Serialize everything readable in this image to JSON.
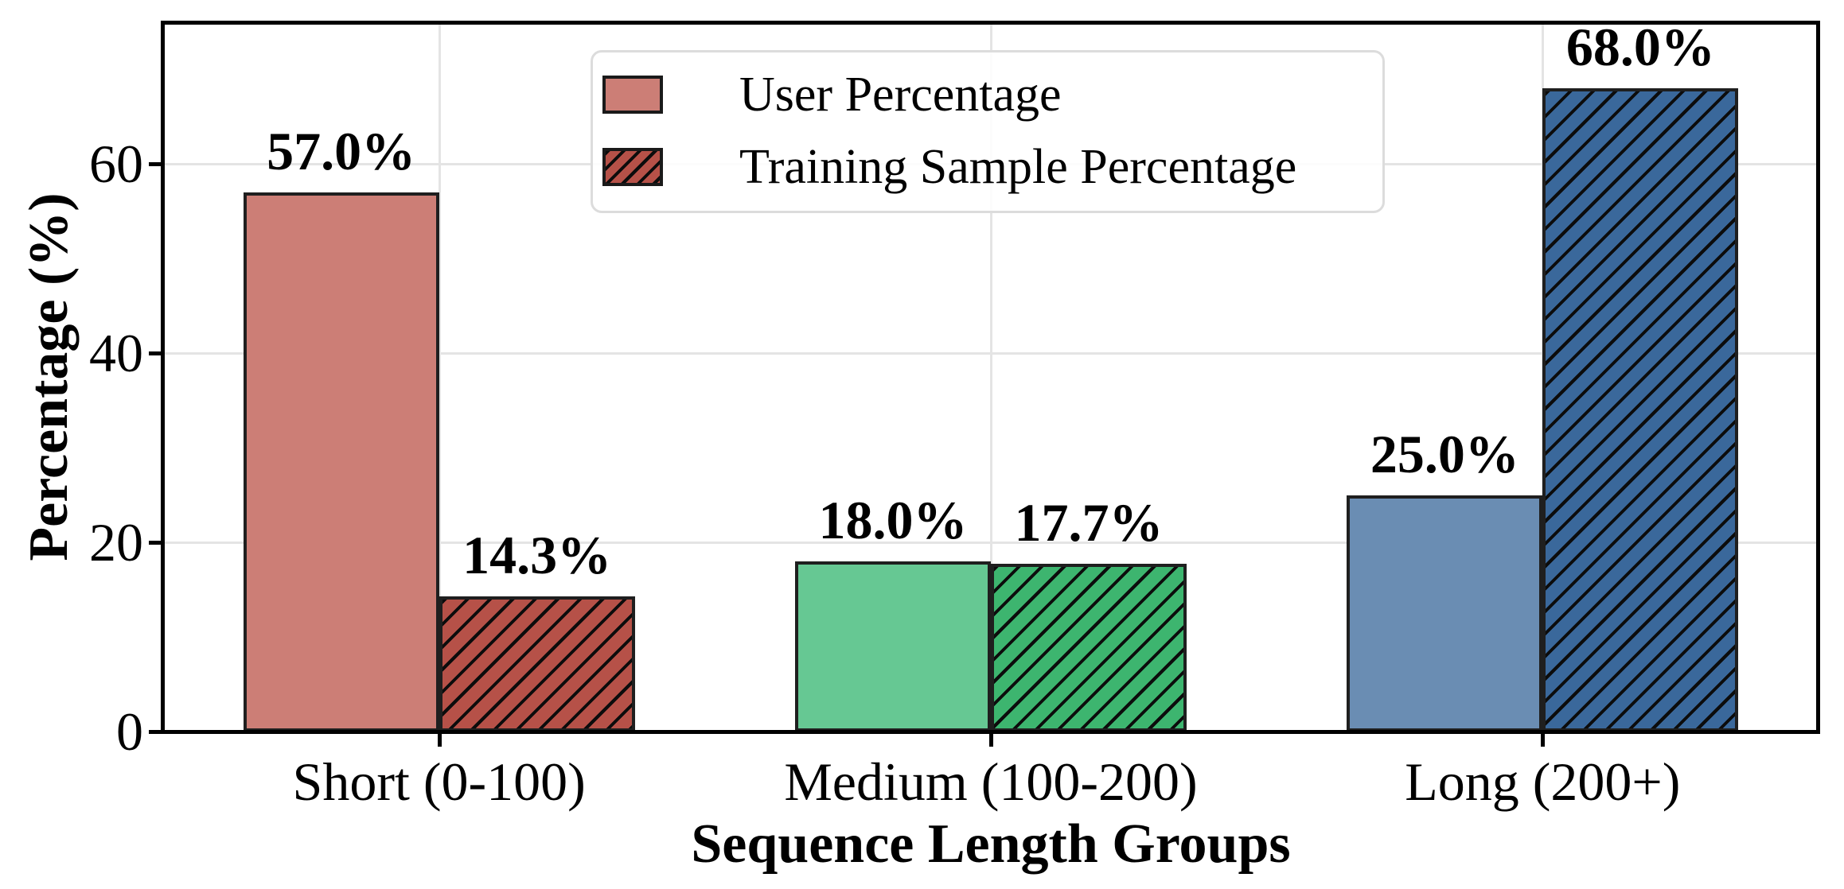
{
  "chart_data": {
    "type": "bar",
    "title": "",
    "xlabel": "Sequence Length Groups",
    "ylabel": "Percentage (%)",
    "categories": [
      "Short (0-100)",
      "Medium (100-200)",
      "Long (200+)"
    ],
    "series": [
      {
        "name": "User Percentage",
        "values": [
          57.0,
          18.0,
          25.0
        ],
        "value_labels": [
          "57.0%",
          "18.0%",
          "25.0%"
        ],
        "colors": [
          "#cc7e76",
          "#66c893",
          "#6a8db3"
        ],
        "hatch": ""
      },
      {
        "name": "Training Sample Percentage",
        "values": [
          14.3,
          17.7,
          68.0
        ],
        "value_labels": [
          "14.3%",
          "17.7%",
          "68.0%"
        ],
        "colors": [
          "#b65148",
          "#3db56f",
          "#3a689b"
        ],
        "hatch": "//"
      }
    ],
    "yticks": [
      0,
      20,
      40,
      60
    ],
    "ytick_labels": [
      "0",
      "20",
      "40",
      "60"
    ],
    "ylim": [
      0,
      75
    ],
    "grid": true,
    "legend": {
      "position": "upper-center",
      "entries": [
        {
          "label": "User Percentage",
          "color": "#cc7e76",
          "hatch": ""
        },
        {
          "label": "Training Sample Percentage",
          "color": "#b65148",
          "hatch": "//"
        }
      ]
    },
    "styles": {
      "bar_edge_color": "#1f1f1f",
      "grid_color": "#e4e4e4",
      "axis_color": "#000000",
      "hatch_color": "#0c0c0c",
      "background": "#ffffff"
    }
  }
}
